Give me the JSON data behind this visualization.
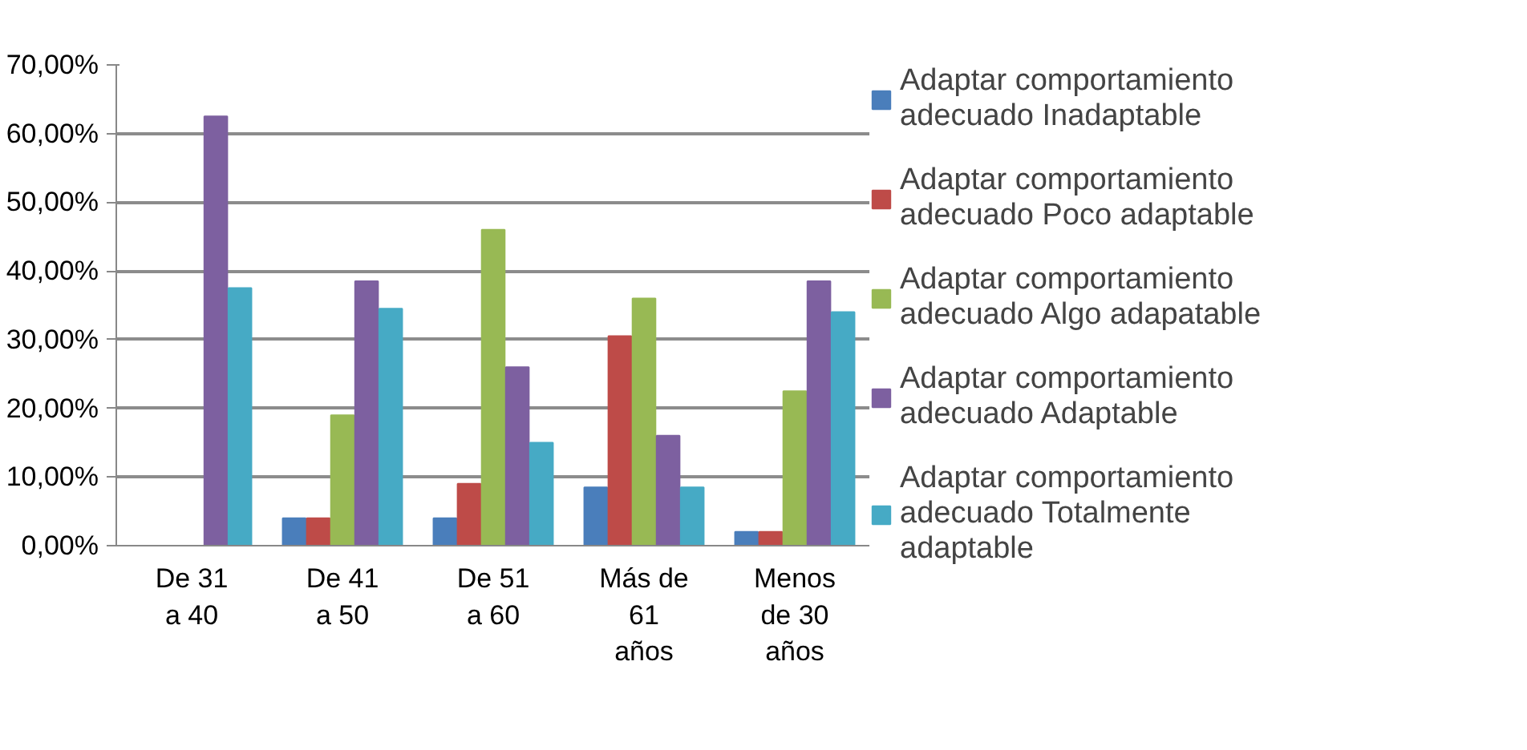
{
  "chart_data": {
    "type": "bar",
    "categories": [
      "De 31 a 40",
      "De 41 a 50",
      "De 51 a 60",
      "Más de 61 años",
      "Menos de 30 años"
    ],
    "series": [
      {
        "name": "Adaptar comportamiento adecuado Inadaptable",
        "color": "#4a7ebb",
        "values": [
          0,
          4,
          4,
          8.5,
          2
        ]
      },
      {
        "name": "Adaptar comportamiento adecuado Poco adaptable",
        "color": "#be4b48",
        "values": [
          0,
          4,
          9,
          30.5,
          2
        ]
      },
      {
        "name": "Adaptar comportamiento adecuado Algo adapatable",
        "color": "#98b954",
        "values": [
          0,
          19,
          46,
          36,
          22.5
        ]
      },
      {
        "name": "Adaptar comportamiento adecuado Adaptable",
        "color": "#7d60a0",
        "values": [
          62.5,
          38.5,
          26,
          16,
          38.5
        ]
      },
      {
        "name": "Adaptar comportamiento adecuado Totalmente adaptable",
        "color": "#46aac5",
        "values": [
          37.5,
          34.5,
          15,
          8.5,
          34
        ]
      }
    ],
    "ylim": [
      0,
      70
    ],
    "yticks": [
      {
        "value": 0,
        "label": "0,00%"
      },
      {
        "value": 10,
        "label": "10,00%"
      },
      {
        "value": 20,
        "label": "20,00%"
      },
      {
        "value": 30,
        "label": "30,00%"
      },
      {
        "value": 40,
        "label": "40,00%"
      },
      {
        "value": 50,
        "label": "50,00%"
      },
      {
        "value": 60,
        "label": "60,00%"
      },
      {
        "value": 70,
        "label": "70,00%"
      }
    ],
    "grid": "y",
    "legend": "right"
  }
}
